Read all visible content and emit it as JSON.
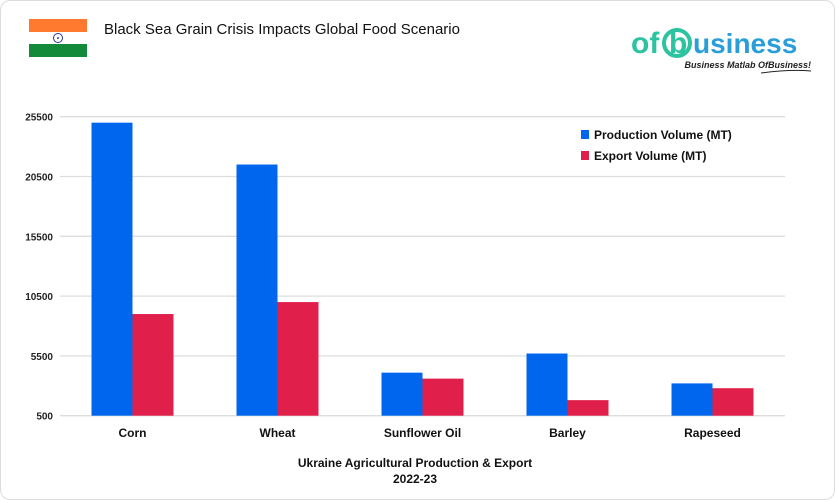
{
  "header": {
    "title": "Black Sea Grain Crisis Impacts Global Food Scenario",
    "flag_icon": "india-flag-icon",
    "logo_text": "ofbusiness",
    "logo_tagline": "Business Matlab OfBusiness!"
  },
  "chart_data": {
    "type": "bar",
    "title": "",
    "xlabel": "Ukraine Agricultural Production & Export",
    "xlabel2": "2022-23",
    "ylabel": "",
    "ylim": [
      500,
      25500
    ],
    "yticks": [
      "500",
      "5500",
      "10500",
      "15500",
      "20500",
      "25500"
    ],
    "categories": [
      "Corn",
      "Wheat",
      "Sunflower Oil",
      "Barley",
      "Rapeseed"
    ],
    "series": [
      {
        "name": "Production Volume (MT)",
        "color": "#0066ee",
        "values": [
          25000,
          21500,
          4100,
          5700,
          3200
        ]
      },
      {
        "name": "Export Volume (MT)",
        "color": "#e01f4b",
        "values": [
          9000,
          10000,
          3600,
          1800,
          2800
        ]
      }
    ],
    "grid": true,
    "legend": "top-right"
  }
}
